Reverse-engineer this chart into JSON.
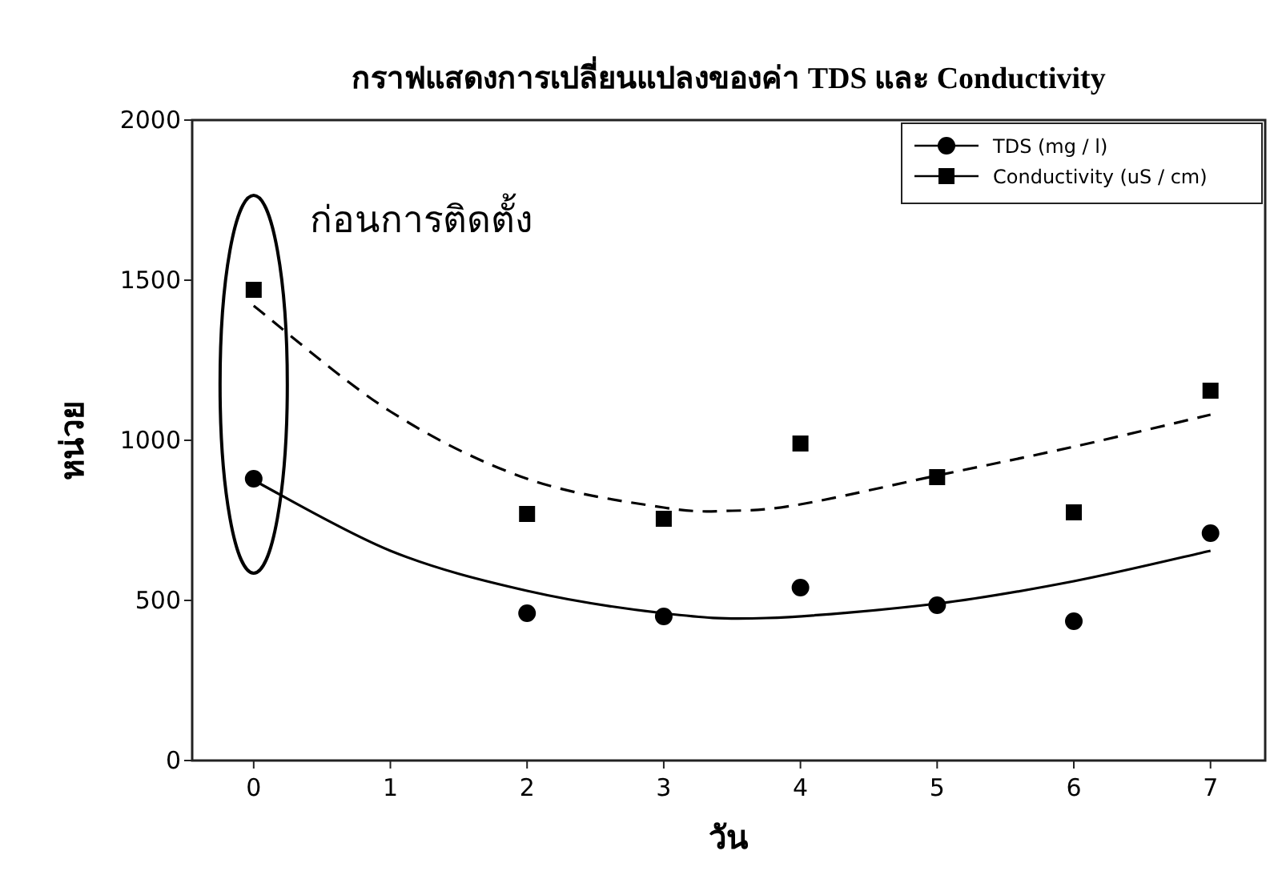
{
  "chart_data": {
    "type": "scatter",
    "title": "กราฟแสดงการเปลี่ยนแปลงของค่า TDS และ Conductivity",
    "xlabel": "วัน",
    "ylabel": "หน่วย",
    "xlim": [
      -0.45,
      7.4
    ],
    "ylim": [
      0,
      2000
    ],
    "xticks": [
      0,
      1,
      2,
      3,
      4,
      5,
      6,
      7
    ],
    "yticks": [
      0,
      500,
      1000,
      1500,
      2000
    ],
    "legend": "top right",
    "annotations": [
      "ก่อนการติดตั้ง"
    ],
    "series": [
      {
        "name": "TDS (mg / l)",
        "type": "scatter",
        "marker": "circle",
        "color": "#000000",
        "x": [
          0,
          2,
          3,
          4,
          5,
          6,
          7
        ],
        "values": [
          880,
          460,
          450,
          540,
          485,
          435,
          710
        ]
      },
      {
        "name": "Conductivity (uS / cm)",
        "type": "scatter",
        "marker": "square",
        "color": "#000000",
        "x": [
          0,
          2,
          3,
          4,
          5,
          6,
          7
        ],
        "values": [
          1470,
          770,
          755,
          990,
          885,
          775,
          1155
        ]
      },
      {
        "type": "line",
        "line_style": "solid",
        "color": "#000000",
        "x": [
          0,
          1,
          2,
          3,
          3.75,
          5,
          6,
          7
        ],
        "values": [
          875,
          655,
          530,
          460,
          445,
          490,
          560,
          655
        ]
      },
      {
        "type": "line",
        "line_style": "dashed",
        "color": "#000000",
        "x": [
          0,
          1,
          2,
          3,
          3.5,
          4,
          5,
          6,
          7
        ],
        "values": [
          1420,
          1090,
          880,
          790,
          780,
          800,
          890,
          980,
          1080
        ]
      }
    ]
  }
}
